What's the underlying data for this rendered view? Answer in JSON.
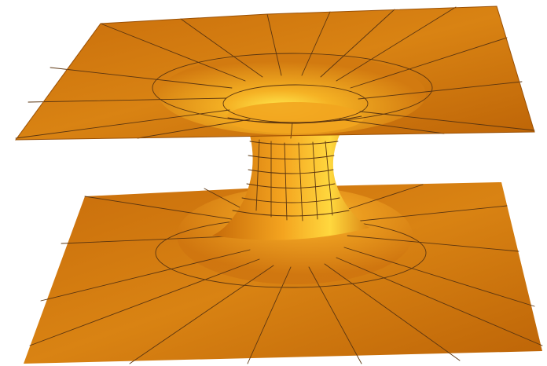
{
  "figure": {
    "subject": "wormhole-embedding-surface",
    "colors": {
      "background": "#ffffff",
      "surface_dark": "#b75f06",
      "surface_mid": "#d97f12",
      "surface_light": "#f7b52a",
      "throat_glow": "#ffe24a",
      "mesh_line": "#5b3510"
    }
  }
}
